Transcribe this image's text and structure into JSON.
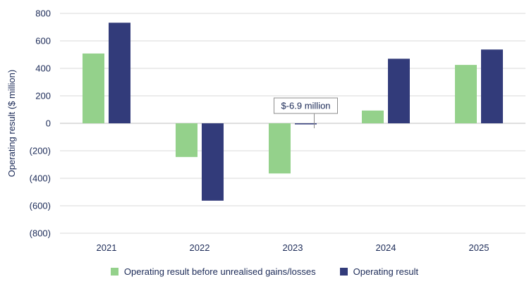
{
  "chart_data": {
    "type": "bar",
    "categories": [
      "2021",
      "2022",
      "2023",
      "2024",
      "2025"
    ],
    "series": [
      {
        "name": "Operating result before unrealised gains/losses",
        "color": "#94d18b",
        "values": [
          508,
          -245,
          -365,
          93,
          425
        ]
      },
      {
        "name": "Operating result",
        "color": "#323b7a",
        "values": [
          732,
          -563,
          -6.9,
          470,
          537
        ]
      }
    ],
    "ylabel": "Operating result ($ million)",
    "ylim": [
      -800,
      800
    ],
    "yticks": [
      {
        "value": 800,
        "label": "800"
      },
      {
        "value": 600,
        "label": "600"
      },
      {
        "value": 400,
        "label": "400"
      },
      {
        "value": 200,
        "label": "200"
      },
      {
        "value": 0,
        "label": "0"
      },
      {
        "value": -200,
        "label": "(200)"
      },
      {
        "value": -400,
        "label": "(400)"
      },
      {
        "value": -600,
        "label": "(600)"
      },
      {
        "value": -800,
        "label": "(800)"
      }
    ],
    "annotation": {
      "text": "$-6.9 million",
      "category": "2023",
      "series": 1
    },
    "grid": true,
    "legend_position": "bottom"
  }
}
